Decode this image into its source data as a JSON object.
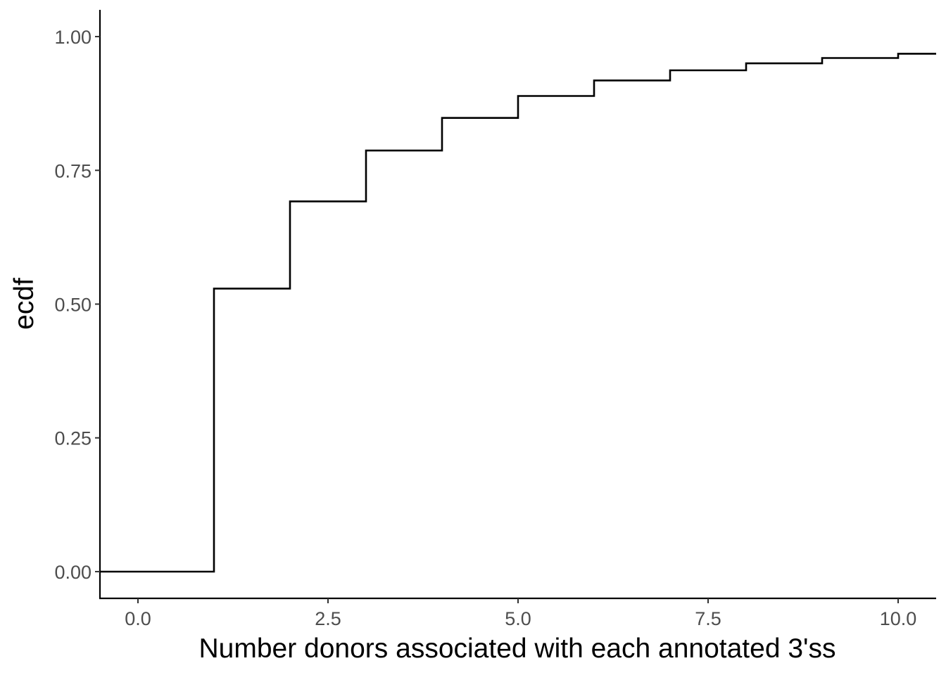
{
  "chart_data": {
    "type": "line",
    "step": "hv",
    "xlabel": "Number donors associated with each annotated 3'ss",
    "ylabel": "ecdf",
    "xlim": [
      -0.5,
      10.5
    ],
    "ylim": [
      -0.05,
      1.05
    ],
    "x_ticks": [
      0,
      2.5,
      5,
      7.5,
      10
    ],
    "x_tick_labels": [
      "0.0",
      "2.5",
      "5.0",
      "7.5",
      "10.0"
    ],
    "y_ticks": [
      0,
      0.25,
      0.5,
      0.75,
      1
    ],
    "y_tick_labels": [
      "0.00",
      "0.25",
      "0.50",
      "0.75",
      "1.00"
    ],
    "grid": false,
    "series": [
      {
        "color": "#000000",
        "x": [
          -0.5,
          1,
          2,
          3,
          4,
          5,
          6,
          7,
          8,
          9,
          10,
          10.5
        ],
        "y": [
          0,
          0.529,
          0.692,
          0.787,
          0.848,
          0.889,
          0.918,
          0.937,
          0.95,
          0.96,
          0.968,
          0.968
        ]
      }
    ]
  }
}
